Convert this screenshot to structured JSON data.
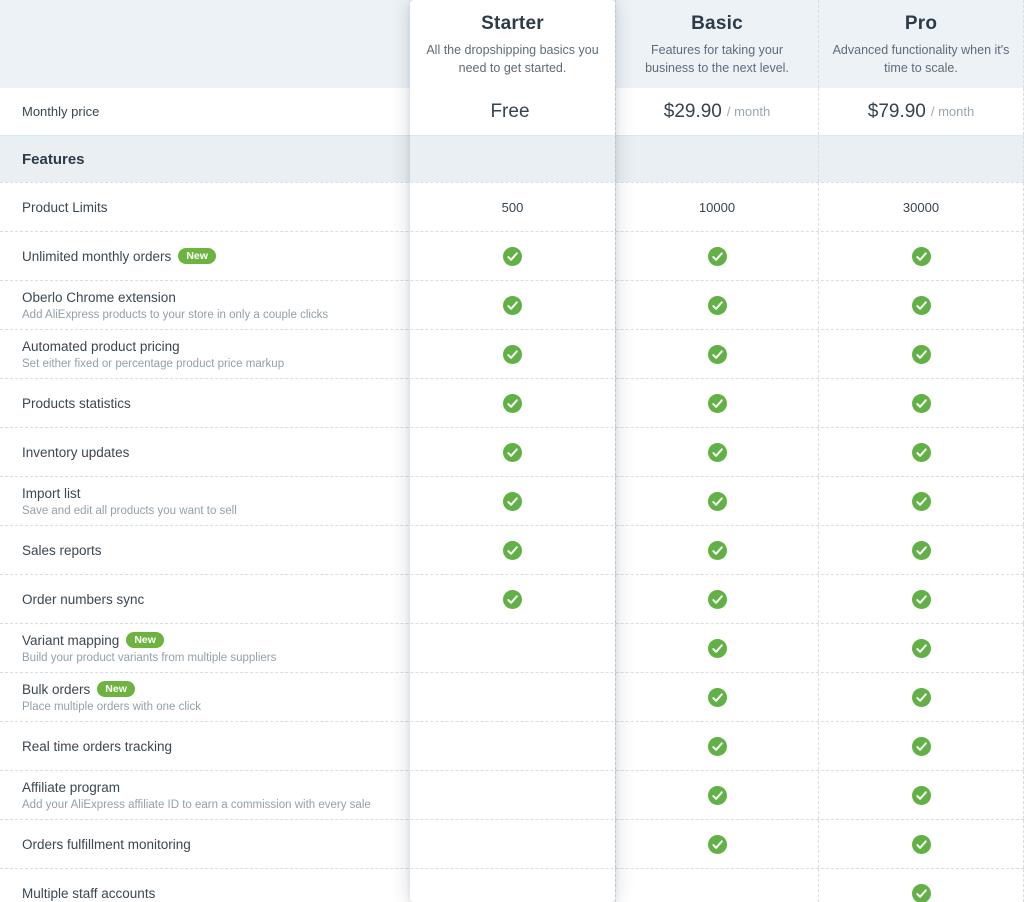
{
  "labels": {
    "monthly_price": "Monthly price",
    "features_header": "Features",
    "new_badge": "New"
  },
  "plans": [
    {
      "name": "Starter",
      "description": "All the dropshipping basics you need to get started.",
      "price": "Free",
      "price_suffix": ""
    },
    {
      "name": "Basic",
      "description": "Features for taking your business to the next level.",
      "price": "$29.90",
      "price_suffix": "/ month"
    },
    {
      "name": "Pro",
      "description": "Advanced functionality when it's time to scale.",
      "price": "$79.90",
      "price_suffix": "/ month"
    }
  ],
  "features": [
    {
      "label": "Product Limits",
      "badge": false,
      "sublabel": "",
      "values": [
        "500",
        "10000",
        "30000"
      ]
    },
    {
      "label": "Unlimited monthly orders",
      "badge": true,
      "sublabel": "",
      "values": [
        true,
        true,
        true
      ]
    },
    {
      "label": "Oberlo Chrome extension",
      "badge": false,
      "sublabel": "Add AliExpress products to your store in only a couple clicks",
      "values": [
        true,
        true,
        true
      ]
    },
    {
      "label": "Automated product pricing",
      "badge": false,
      "sublabel": "Set either fixed or percentage product price markup",
      "values": [
        true,
        true,
        true
      ]
    },
    {
      "label": "Products statistics",
      "badge": false,
      "sublabel": "",
      "values": [
        true,
        true,
        true
      ]
    },
    {
      "label": "Inventory updates",
      "badge": false,
      "sublabel": "",
      "values": [
        true,
        true,
        true
      ]
    },
    {
      "label": "Import list",
      "badge": false,
      "sublabel": "Save and edit all products you want to sell",
      "values": [
        true,
        true,
        true
      ]
    },
    {
      "label": "Sales reports",
      "badge": false,
      "sublabel": "",
      "values": [
        true,
        true,
        true
      ]
    },
    {
      "label": "Order numbers sync",
      "badge": false,
      "sublabel": "",
      "values": [
        true,
        true,
        true
      ]
    },
    {
      "label": "Variant mapping",
      "badge": true,
      "sublabel": "Build your product variants from multiple suppliers",
      "values": [
        false,
        true,
        true
      ]
    },
    {
      "label": "Bulk orders",
      "badge": true,
      "sublabel": "Place multiple orders with one click",
      "values": [
        false,
        true,
        true
      ]
    },
    {
      "label": "Real time orders tracking",
      "badge": false,
      "sublabel": "",
      "values": [
        false,
        true,
        true
      ]
    },
    {
      "label": "Affiliate program",
      "badge": false,
      "sublabel": "Add your AliExpress affiliate ID to earn a commission with every sale",
      "values": [
        false,
        true,
        true
      ]
    },
    {
      "label": "Orders fulfillment monitoring",
      "badge": false,
      "sublabel": "",
      "values": [
        false,
        true,
        true
      ]
    },
    {
      "label": "Multiple staff accounts",
      "badge": false,
      "sublabel": "",
      "values": [
        false,
        false,
        true
      ]
    }
  ],
  "colors": {
    "check_green": "#61b146",
    "badge_green": "#6cb33f"
  }
}
